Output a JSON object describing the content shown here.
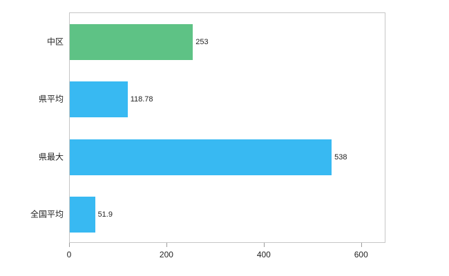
{
  "chart_data": {
    "type": "bar",
    "orientation": "horizontal",
    "title": "",
    "xlabel": "",
    "ylabel": "",
    "categories": [
      "中区",
      "県平均",
      "県最大",
      "全国平均"
    ],
    "values": [
      253,
      118.78,
      538,
      51.9
    ],
    "value_labels": [
      "253",
      "118.78",
      "538",
      "51.9"
    ],
    "bar_colors": [
      "#5ec285",
      "#38b9f2",
      "#38b9f2",
      "#38b9f2"
    ],
    "xticks": [
      0,
      200,
      400,
      600
    ],
    "xtick_labels": [
      "0",
      "200",
      "400",
      "600"
    ],
    "xlim": [
      0,
      650
    ],
    "grid": false,
    "legend": "none",
    "plot_border_color": "#c6c6c6",
    "tick_color": "#9a9a9a",
    "text_color": "#222222"
  }
}
